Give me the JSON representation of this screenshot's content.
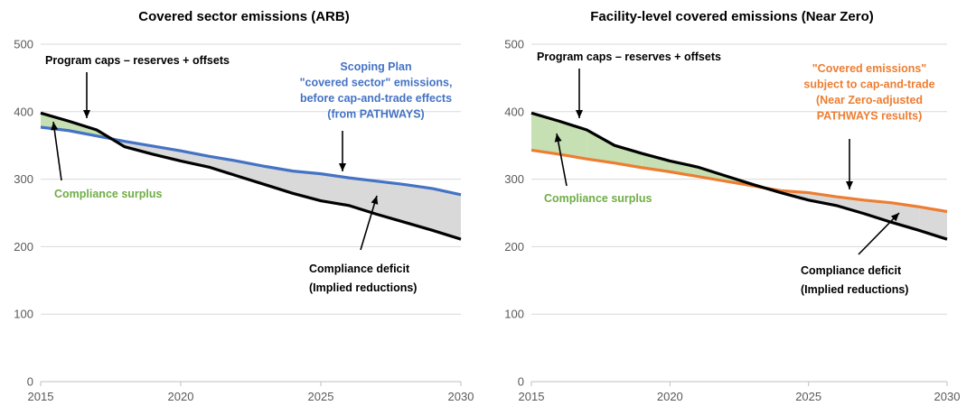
{
  "chart_data": [
    {
      "type": "area",
      "title": "Covered sector emissions (ARB)",
      "xlabel": "",
      "ylabel": "",
      "xlim": [
        2015,
        2030
      ],
      "ylim": [
        0,
        500
      ],
      "x_ticks": [
        2015,
        2020,
        2025,
        2030
      ],
      "y_ticks": [
        0,
        100,
        200,
        300,
        400,
        500
      ],
      "grid": "horizontal",
      "series": [
        {
          "name": "Program caps – reserves + offsets",
          "color": "#000000",
          "x": [
            2015,
            2016,
            2017,
            2018,
            2019,
            2020,
            2021,
            2022,
            2023,
            2024,
            2025,
            2026,
            2027,
            2028,
            2029,
            2030
          ],
          "values": [
            398,
            386,
            373,
            348,
            337,
            327,
            318,
            305,
            292,
            279,
            268,
            261,
            248,
            236,
            224,
            211
          ]
        },
        {
          "name": "Scoping Plan \"covered sector\" emissions, before cap-and-trade effects (from PATHWAYS)",
          "color": "#4472C4",
          "x": [
            2015,
            2016,
            2017,
            2018,
            2019,
            2020,
            2021,
            2022,
            2023,
            2024,
            2025,
            2026,
            2027,
            2028,
            2029,
            2030
          ],
          "values": [
            377,
            372,
            364,
            356,
            349,
            342,
            334,
            327,
            319,
            312,
            308,
            302,
            297,
            292,
            286,
            277
          ]
        }
      ],
      "fills": {
        "surplus_color": "#C6E0B4",
        "deficit_color": "#D9D9D9"
      },
      "annotations": {
        "caps_label": "Program caps – reserves + offsets",
        "emissions_label": [
          "Scoping Plan",
          "\"covered sector\" emissions,",
          "before cap-and-trade effects",
          "(from PATHWAYS)"
        ],
        "surplus_label": "Compliance surplus",
        "deficit_label": [
          "Compliance deficit",
          "(Implied reductions)"
        ]
      }
    },
    {
      "type": "area",
      "title": "Facility-level covered emissions (Near Zero)",
      "xlabel": "",
      "ylabel": "",
      "xlim": [
        2015,
        2030
      ],
      "ylim": [
        0,
        500
      ],
      "x_ticks": [
        2015,
        2020,
        2025,
        2030
      ],
      "y_ticks": [
        0,
        100,
        200,
        300,
        400,
        500
      ],
      "grid": "horizontal",
      "series": [
        {
          "name": "Program caps – reserves + offsets",
          "color": "#000000",
          "x": [
            2015,
            2016,
            2017,
            2018,
            2019,
            2020,
            2021,
            2022,
            2023,
            2024,
            2025,
            2026,
            2027,
            2028,
            2029,
            2030
          ],
          "values": [
            398,
            386,
            373,
            350,
            338,
            327,
            318,
            305,
            292,
            280,
            269,
            261,
            249,
            236,
            224,
            211
          ]
        },
        {
          "name": "\"Covered emissions\" subject to cap-and-trade (Near Zero-adjusted PATHWAYS results)",
          "color": "#ED7D31",
          "x": [
            2015,
            2016,
            2017,
            2018,
            2019,
            2020,
            2021,
            2022,
            2023,
            2024,
            2025,
            2026,
            2027,
            2028,
            2029,
            2030
          ],
          "values": [
            343,
            337,
            330,
            324,
            317,
            311,
            304,
            297,
            290,
            283,
            280,
            274,
            269,
            265,
            259,
            252
          ]
        }
      ],
      "fills": {
        "surplus_color": "#C6E0B4",
        "deficit_color": "#D9D9D9"
      },
      "annotations": {
        "caps_label": "Program caps – reserves + offsets",
        "emissions_label": [
          "\"Covered emissions\"",
          "subject to cap-and-trade",
          "(Near Zero-adjusted",
          "PATHWAYS results)"
        ],
        "surplus_label": "Compliance surplus",
        "deficit_label": [
          "Compliance deficit",
          "(Implied reductions)"
        ]
      }
    }
  ]
}
